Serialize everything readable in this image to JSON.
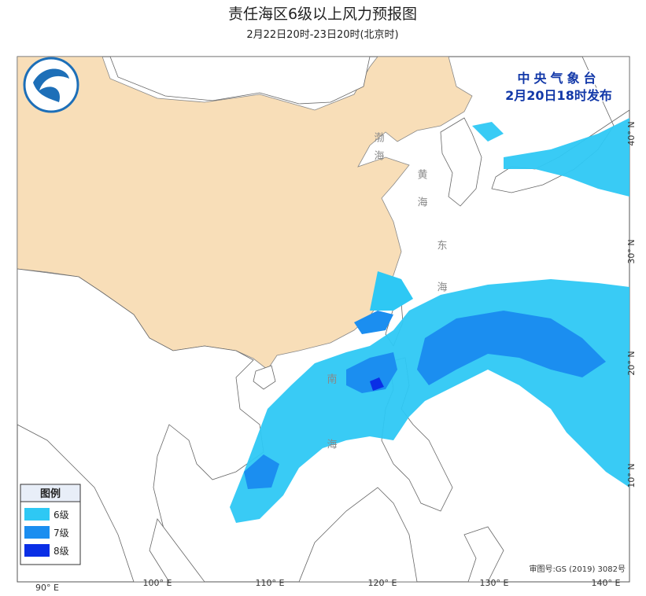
{
  "header": {
    "title": "责任海区6级以上风力预报图",
    "subtitle": "2月22日20时-23日20时(北京时)"
  },
  "issuer": {
    "name": "中央气象台",
    "time": "2月20日18时发布"
  },
  "legend": {
    "title": "图例",
    "items": [
      {
        "label": "6级",
        "color": "#2ec8f4"
      },
      {
        "label": "7级",
        "color": "#1b8ef0"
      },
      {
        "label": "8级",
        "color": "#0a2fe6"
      }
    ]
  },
  "seas": [
    "渤海",
    "黄海",
    "东海",
    "南海"
  ],
  "longitude_labels": [
    "90° E",
    "100° E",
    "110° E",
    "120° E",
    "130° E",
    "140° E"
  ],
  "latitude_labels": [
    "10° N",
    "20° N",
    "30° N",
    "40° N"
  ],
  "approval": "审图号:GS (2019) 3082号"
}
